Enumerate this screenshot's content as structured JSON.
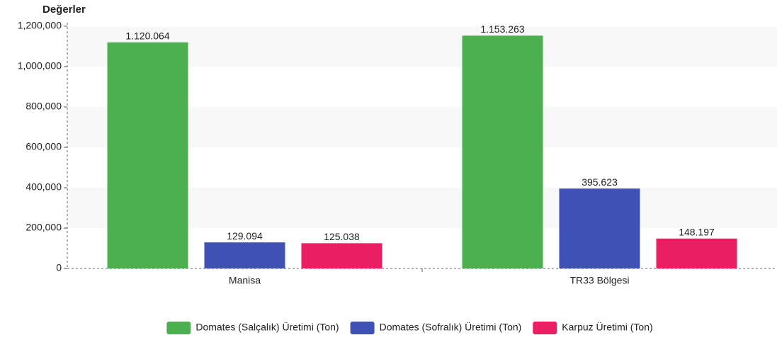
{
  "chart_data": {
    "type": "bar",
    "y_axis_title": "Değerler",
    "categories": [
      "Manisa",
      "TR33 Bölgesi"
    ],
    "series": [
      {
        "name": "Domates (Salçalık) Üretimi (Ton)",
        "color": "#4caf50",
        "values": [
          1120064,
          1153263
        ],
        "value_labels": [
          "1.120.064",
          "1.153.263"
        ]
      },
      {
        "name": "Domates (Sofralık) Üretimi (Ton)",
        "color": "#3f51b5",
        "values": [
          129094,
          395623
        ],
        "value_labels": [
          "129.094",
          "395.623"
        ]
      },
      {
        "name": "Karpuz Üretimi (Ton)",
        "color": "#e91e63",
        "values": [
          125038,
          148197
        ],
        "value_labels": [
          "125.038",
          "148.197"
        ]
      }
    ],
    "ylim": [
      0,
      1200000
    ],
    "yticks": [
      0,
      {
        "value": 200000,
        "label": "200,000"
      },
      {
        "value": 400000,
        "label": "400,000"
      },
      {
        "value": 600000,
        "label": "600,000"
      },
      {
        "value": 800000,
        "label": "800,000"
      },
      {
        "value": 1000000,
        "label": "1,000,000"
      },
      {
        "value": 1200000,
        "label": "1,200,000"
      }
    ],
    "grid": "bands",
    "legend": "bottom"
  }
}
